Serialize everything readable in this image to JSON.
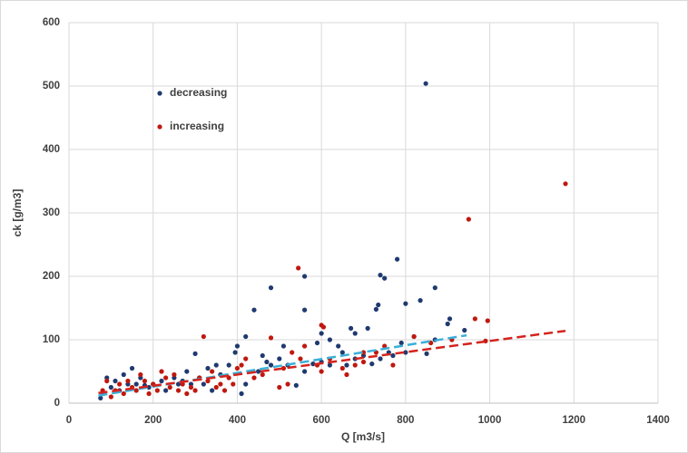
{
  "chart_data": {
    "type": "scatter",
    "x_label": "Q [m3/s]",
    "y_label": "ck [g/m3]",
    "xlim": [
      0,
      1400
    ],
    "ylim": [
      0,
      600
    ],
    "xticks": [
      0,
      200,
      400,
      600,
      800,
      1000,
      1200,
      1400
    ],
    "yticks": [
      0,
      100,
      200,
      300,
      400,
      500,
      600
    ],
    "grid": true,
    "legend": "upper left",
    "series": [
      {
        "name": "decreasing",
        "color": "#1f3a70",
        "x": [
          848,
          780,
          740,
          750,
          560,
          480,
          870,
          800,
          835,
          735,
          730,
          440,
          560,
          510,
          905,
          900,
          420,
          870,
          850,
          670,
          680,
          710,
          620,
          600,
          590,
          300,
          400,
          395,
          450,
          470,
          500,
          520,
          540,
          560,
          580,
          600,
          650,
          700,
          740,
          760,
          770,
          940,
          330,
          350,
          360,
          380,
          410,
          420,
          250,
          260,
          200,
          220,
          180,
          150,
          140,
          120,
          100,
          90,
          80,
          75,
          110,
          130,
          160,
          170,
          190,
          230,
          270,
          280,
          290,
          310,
          320,
          340,
          460,
          480,
          620,
          640,
          660,
          680,
          720,
          790,
          800,
          820
        ],
        "y": [
          504,
          227,
          202,
          197,
          200,
          182,
          182,
          157,
          162,
          155,
          148,
          147,
          147,
          90,
          133,
          125,
          105,
          100,
          78,
          118,
          110,
          118,
          100,
          110,
          95,
          78,
          90,
          80,
          50,
          65,
          70,
          60,
          28,
          50,
          62,
          65,
          80,
          75,
          70,
          80,
          75,
          115,
          55,
          60,
          45,
          60,
          15,
          30,
          40,
          30,
          30,
          35,
          28,
          55,
          30,
          20,
          25,
          40,
          15,
          8,
          35,
          45,
          30,
          40,
          25,
          20,
          35,
          50,
          30,
          40,
          30,
          20,
          75,
          60,
          60,
          90,
          60,
          70,
          62,
          95,
          80,
          105
        ]
      },
      {
        "name": "increasing",
        "color": "#c0180f",
        "x": [
          1180,
          950,
          545,
          320,
          965,
          995,
          990,
          910,
          820,
          730,
          600,
          605,
          590,
          560,
          480,
          500,
          520,
          440,
          400,
          380,
          360,
          340,
          300,
          290,
          280,
          270,
          260,
          250,
          240,
          230,
          220,
          210,
          200,
          190,
          180,
          170,
          160,
          150,
          140,
          130,
          120,
          110,
          100,
          90,
          80,
          650,
          660,
          680,
          700,
          620,
          600,
          550,
          530,
          510,
          460,
          420,
          410,
          390,
          370,
          350,
          330,
          310,
          750,
          770,
          860,
          700
        ],
        "y": [
          346,
          290,
          213,
          105,
          133,
          130,
          98,
          100,
          105,
          80,
          123,
          120,
          60,
          90,
          103,
          25,
          30,
          40,
          55,
          40,
          30,
          50,
          20,
          25,
          15,
          30,
          20,
          45,
          25,
          40,
          50,
          20,
          30,
          15,
          35,
          45,
          20,
          25,
          35,
          15,
          30,
          20,
          10,
          35,
          20,
          55,
          45,
          60,
          80,
          70,
          50,
          70,
          80,
          55,
          45,
          70,
          60,
          30,
          20,
          25,
          35,
          40,
          90,
          60,
          95,
          65
        ]
      }
    ],
    "trendlines": [
      {
        "color": "#3ab0d8",
        "x": [
          70,
          945
        ],
        "y": [
          12,
          107
        ]
      },
      {
        "color": "#d4231c",
        "x": [
          70,
          1180
        ],
        "y": [
          16,
          114
        ]
      }
    ]
  }
}
